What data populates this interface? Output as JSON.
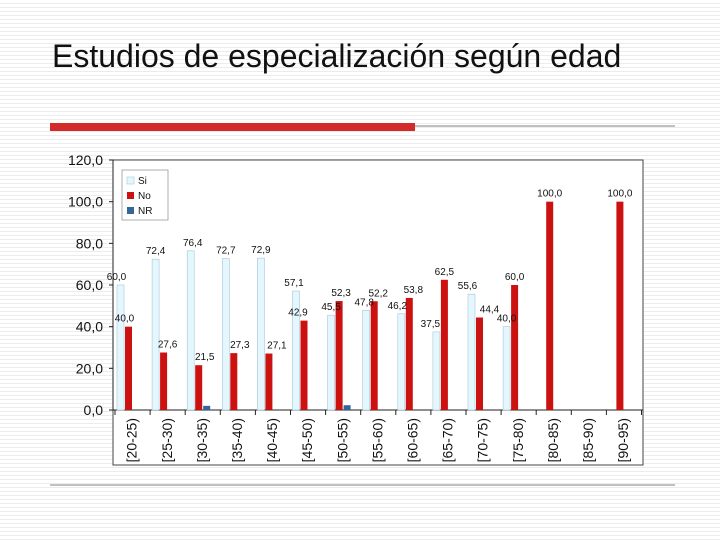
{
  "slide": {
    "title": "Estudios de especialización según edad"
  },
  "colors": {
    "si": "#e4f7ff",
    "no": "#cc1111",
    "nr": "#336699",
    "accent": "#d32a2a"
  },
  "chart_data": {
    "type": "bar",
    "title": "",
    "xlabel": "",
    "ylabel": "",
    "ylim": [
      0,
      120
    ],
    "yticks": [
      "0,0",
      "20,0",
      "40,0",
      "60,0",
      "80,0",
      "100,0",
      "120,0"
    ],
    "grid": false,
    "legend_position": "top-left",
    "categories": [
      "[20-25)",
      "[25-30)",
      "[30-35)",
      "[35-40)",
      "[40-45)",
      "[45-50)",
      "[50-55)",
      "[55-60)",
      "[60-65)",
      "[65-70)",
      "[70-75)",
      "[75-80)",
      "[80-85)",
      "[85-90)",
      "[90-95)"
    ],
    "series": [
      {
        "name": "Si",
        "values": [
          60.0,
          72.4,
          76.4,
          72.7,
          72.9,
          57.1,
          45.5,
          47.8,
          46.2,
          37.5,
          55.6,
          40.0,
          null,
          null,
          null
        ],
        "labels": [
          "60,0",
          "72,4",
          "76,4",
          "72,7",
          "72,9",
          "57,1",
          "45,5",
          "47,8",
          "46,2",
          "37,5",
          "55,6",
          "40,0",
          "",
          "",
          ""
        ]
      },
      {
        "name": "No",
        "values": [
          40.0,
          27.6,
          21.5,
          27.3,
          27.1,
          42.9,
          52.3,
          52.2,
          53.8,
          62.5,
          44.4,
          60.0,
          100.0,
          null,
          100.0
        ],
        "labels": [
          "40,0",
          "27,6",
          "21,5",
          "27,3",
          "27,1",
          "42,9",
          "52,3",
          "52,2",
          "53,8",
          "62,5",
          "44,4",
          "60,0",
          "100,0",
          "",
          "100,0"
        ]
      },
      {
        "name": "NR",
        "values": [
          null,
          null,
          2.0,
          null,
          null,
          null,
          2.3,
          null,
          null,
          null,
          null,
          null,
          null,
          null,
          null
        ],
        "labels": [
          "",
          "",
          "",
          "",
          "",
          "",
          "",
          "",
          "",
          "",
          "",
          "",
          "",
          "",
          ""
        ]
      }
    ]
  }
}
